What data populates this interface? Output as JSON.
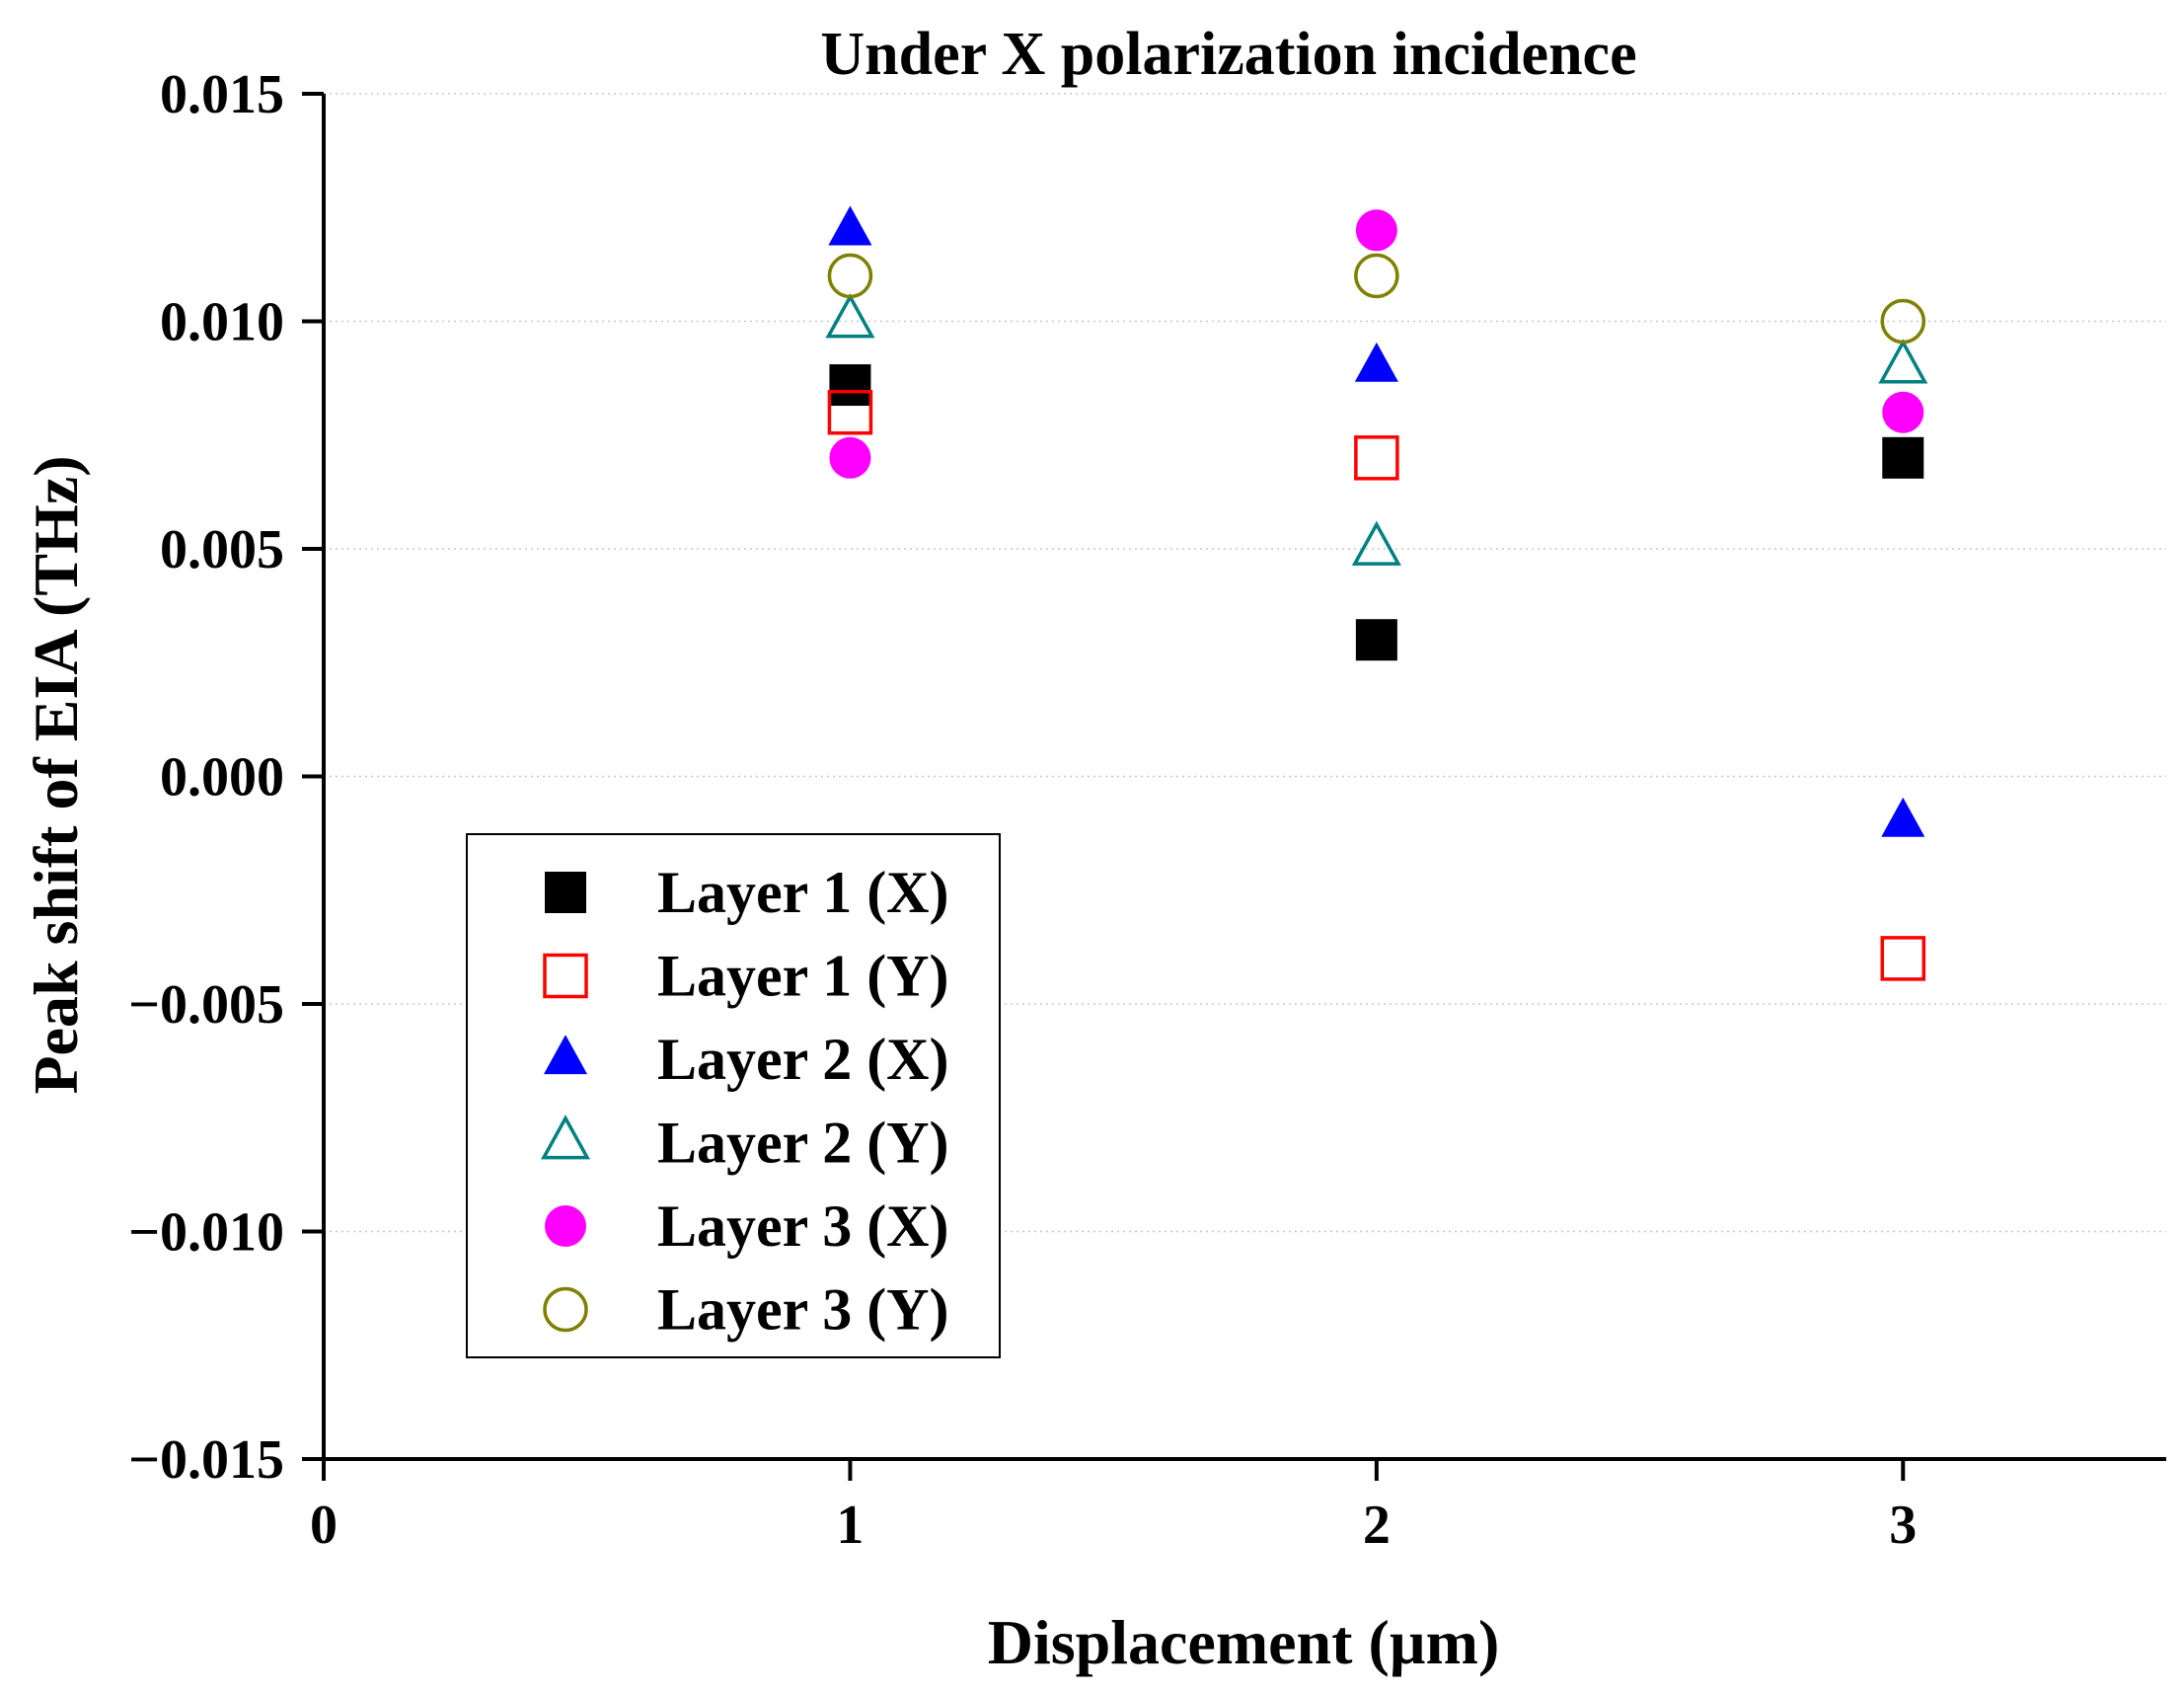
{
  "chart_data": {
    "type": "scatter",
    "title": "Under X polarization incidence",
    "xlabel": "Displacement (µm)",
    "ylabel": "Peak shift of EIA (THz)",
    "xlim": [
      0,
      3.5
    ],
    "ylim": [
      -0.015,
      0.015
    ],
    "x_ticks": [
      0,
      1,
      2,
      3
    ],
    "x_tick_labels": [
      "0",
      "1",
      "2",
      "3"
    ],
    "y_ticks": [
      -0.015,
      -0.01,
      -0.005,
      0.0,
      0.005,
      0.01,
      0.015
    ],
    "y_tick_labels": [
      "−0.015",
      "−0.010",
      "−0.005",
      "0.000",
      "0.005",
      "0.010",
      "0.015"
    ],
    "grid": "horizontal dotted",
    "legend_position": "lower-left",
    "series": [
      {
        "name": "Layer 1 (X)",
        "marker": "square",
        "filled": true,
        "color": "#000000",
        "x": [
          1,
          2,
          3
        ],
        "y": [
          0.0086,
          0.003,
          0.007
        ]
      },
      {
        "name": "Layer 1 (Y)",
        "marker": "square",
        "filled": false,
        "color": "#ff0000",
        "x": [
          1,
          2,
          3
        ],
        "y": [
          0.008,
          0.007,
          -0.004
        ]
      },
      {
        "name": "Layer 2 (X)",
        "marker": "triangle",
        "filled": true,
        "color": "#0000ff",
        "x": [
          1,
          2,
          3
        ],
        "y": [
          0.012,
          0.009,
          -0.001
        ]
      },
      {
        "name": "Layer 2 (Y)",
        "marker": "triangle",
        "filled": false,
        "color": "#008080",
        "x": [
          1,
          2,
          3
        ],
        "y": [
          0.01,
          0.005,
          0.009
        ]
      },
      {
        "name": "Layer 3 (X)",
        "marker": "circle",
        "filled": true,
        "color": "#ff00ff",
        "x": [
          1,
          2,
          3
        ],
        "y": [
          0.007,
          0.012,
          0.008
        ]
      },
      {
        "name": "Layer 3 (Y)",
        "marker": "circle",
        "filled": false,
        "color": "#808000",
        "x": [
          1,
          2,
          3
        ],
        "y": [
          0.011,
          0.011,
          0.01
        ]
      }
    ]
  }
}
